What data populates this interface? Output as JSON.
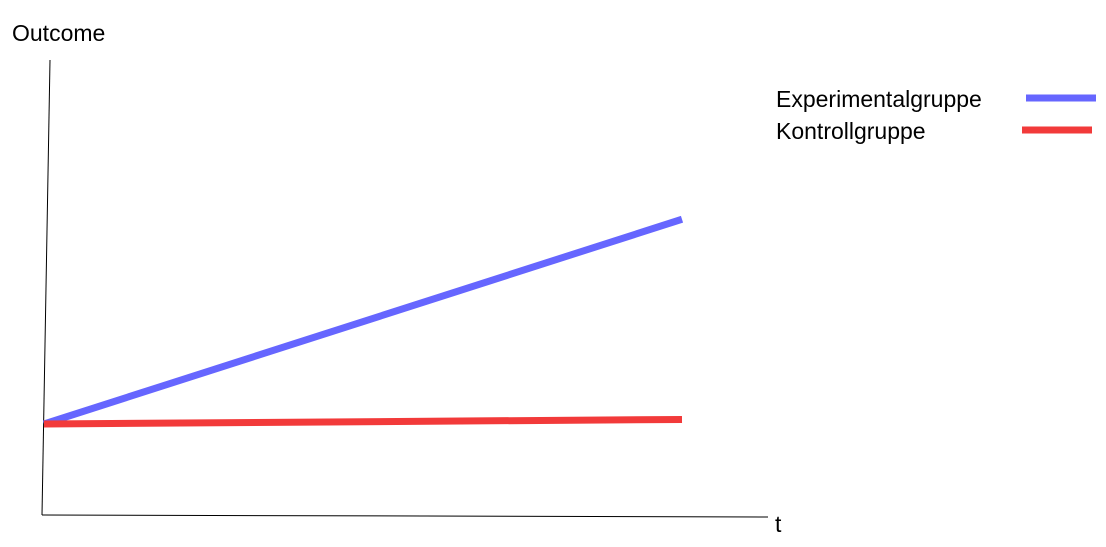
{
  "chart_data": {
    "type": "line",
    "ylabel": "Outcome",
    "xlabel": "t",
    "x": [
      0,
      1
    ],
    "ylim": [
      0,
      1
    ],
    "series": [
      {
        "name": "Experimentalgruppe",
        "color": "#6666ff",
        "values": [
          0.2,
          0.65
        ]
      },
      {
        "name": "Kontrollgruppe",
        "color": "#f23a3a",
        "values": [
          0.2,
          0.21
        ]
      }
    ],
    "legend": "top-right",
    "grid": false
  }
}
